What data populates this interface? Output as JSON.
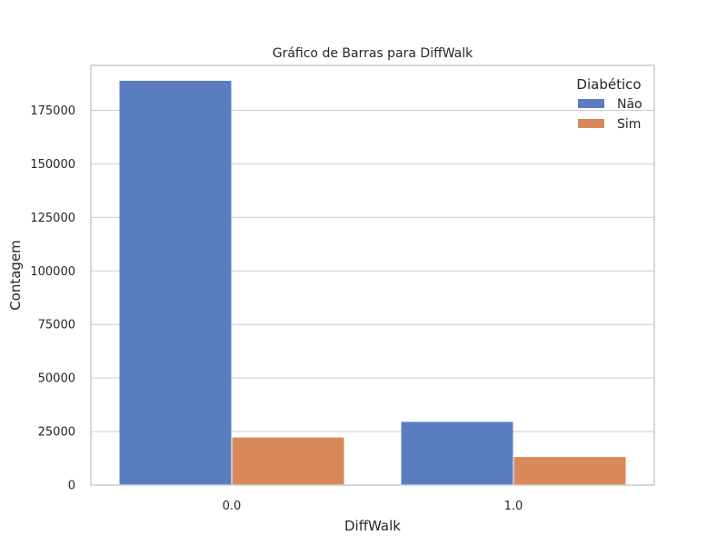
{
  "chart_data": {
    "type": "bar",
    "title": "Gráfico de Barras para DiffWalk",
    "xlabel": "DiffWalk",
    "ylabel": "Contagem",
    "categories": [
      "0.0",
      "1.0"
    ],
    "series": [
      {
        "name": "Não",
        "color": "#5a7dc2",
        "values": [
          188800,
          29500
        ]
      },
      {
        "name": "Sim",
        "color": "#d9885a",
        "values": [
          22200,
          13100
        ]
      }
    ],
    "ylim": [
      0,
      196000
    ],
    "yticks": [
      0,
      25000,
      50000,
      75000,
      100000,
      125000,
      150000,
      175000
    ],
    "grid": true,
    "legend": {
      "title": "Diabético",
      "placement": "top-right"
    }
  }
}
